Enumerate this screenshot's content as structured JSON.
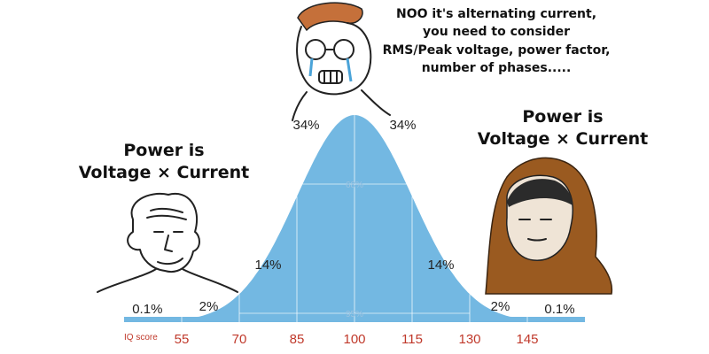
{
  "captions": {
    "left": [
      "Power is",
      "Voltage × Current"
    ],
    "right": [
      "Power is",
      "Voltage × Current"
    ],
    "top": [
      "NOO it's alternating current,",
      "you need to consider",
      "RMS/Peak voltage, power factor,",
      "number of phases....."
    ]
  },
  "chart_data": {
    "type": "area",
    "xlabel": "IQ score",
    "x_ticks": [
      55,
      70,
      85,
      100,
      115,
      130,
      145
    ],
    "band_labels": [
      {
        "x": 47,
        "label": "0.1%"
      },
      {
        "x": 62.5,
        "label": "2%"
      },
      {
        "x": 77.5,
        "label": "14%"
      },
      {
        "x": 92.5,
        "label": "34%"
      },
      {
        "x": 107.5,
        "label": "34%"
      },
      {
        "x": 122.5,
        "label": "14%"
      },
      {
        "x": 137.5,
        "label": "2%"
      },
      {
        "x": 152.5,
        "label": "0.1%"
      }
    ],
    "inner_labels": [
      {
        "label": "68%",
        "range": [
          85,
          115
        ]
      },
      {
        "label": "95%",
        "range": [
          70,
          130
        ]
      }
    ],
    "mean": 100,
    "sd": 15,
    "fill_color": "#73b8e2"
  }
}
